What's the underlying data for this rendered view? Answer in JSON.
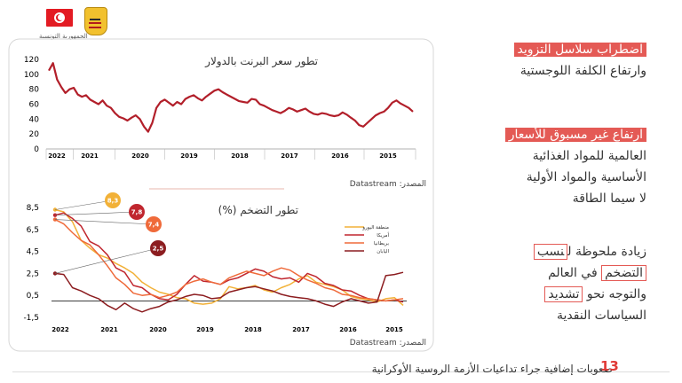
{
  "header": {
    "republic_label": "الجمهورية التونسية"
  },
  "colors": {
    "accent": "#e45a55",
    "brent_line": "#b21f2a",
    "page_number": "#e03a36"
  },
  "icons": {
    "flag": "tunisia-flag-icon",
    "emblem": "tunisia-coat-of-arms-icon"
  },
  "brent_chart": {
    "title": "تطور سعر البرنت بالدولار",
    "source": "المصدر: Datastream"
  },
  "inflation_chart": {
    "title": "تطور التضخم (%)",
    "source": "المصدر: Datastream"
  },
  "chart_data": [
    {
      "type": "line",
      "title": "تطور سعر البرنت بالدولار",
      "x_ticks": [
        "2022",
        "2021",
        "2020",
        "2019",
        "2018",
        "2017",
        "2016",
        "2015"
      ],
      "y_ticks": [
        "120",
        "100",
        "80",
        "60",
        "40",
        "20",
        "0"
      ],
      "ylim": [
        0,
        120
      ],
      "x_direction": "right-to-left",
      "series": [
        {
          "values": [
            105,
            115,
            93,
            83,
            75,
            80,
            82,
            73,
            70,
            72,
            66,
            63,
            60,
            65,
            58,
            55,
            48,
            43,
            41,
            38,
            42,
            45,
            40,
            30,
            23,
            35,
            55,
            63,
            66,
            62,
            58,
            63,
            60,
            67,
            70,
            72,
            68,
            65,
            70,
            74,
            78,
            80,
            76,
            73,
            70,
            67,
            64,
            63,
            62,
            67,
            66,
            60,
            58,
            55,
            52,
            50,
            48,
            51,
            55,
            53,
            50,
            52,
            54,
            50,
            47,
            46,
            48,
            47,
            45,
            44,
            45,
            49,
            46,
            42,
            38,
            32,
            30,
            35,
            40,
            45,
            48,
            50,
            55,
            62,
            65,
            61,
            58,
            55,
            50
          ]
        }
      ]
    },
    {
      "type": "line",
      "title": "تطور التضخم (%)",
      "x_ticks": [
        "2022",
        "2021",
        "2020",
        "2019",
        "2018",
        "2017",
        "2016",
        "2015"
      ],
      "y_ticks": [
        "8,5",
        "6,5",
        "4,5",
        "2,5",
        "0,5",
        "-1,5"
      ],
      "ylim": [
        -1.5,
        8.5
      ],
      "x_direction": "right-to-left",
      "callouts": [
        {
          "label": "8,3",
          "color": "#f2b138"
        },
        {
          "label": "7,8",
          "color": "#c0262e"
        },
        {
          "label": "7,4",
          "color": "#ef6a3a"
        },
        {
          "label": "2,5",
          "color": "#8c1d20"
        }
      ],
      "series": [
        {
          "name": "منطقة اليورو",
          "color": "#f2b138",
          "values": [
            8.3,
            8.1,
            7.2,
            5.5,
            4.8,
            4.2,
            3.9,
            3.4,
            3.0,
            2.5,
            1.7,
            1.2,
            0.8,
            0.6,
            0.3,
            0.2,
            -0.2,
            -0.3,
            -0.2,
            0.2,
            1.3,
            1.1,
            1.2,
            1.4,
            1.0,
            0.8,
            1.2,
            1.5,
            2.0,
            2.3,
            1.7,
            1.5,
            1.3,
            1.0,
            0.4,
            0.2,
            0.1,
            -0.1,
            0.2,
            0.3,
            -0.4
          ]
        },
        {
          "name": "أمريكا",
          "color": "#c0262e",
          "values": [
            7.8,
            8.0,
            7.5,
            6.8,
            5.4,
            5.0,
            4.2,
            3.0,
            2.6,
            1.4,
            1.2,
            0.6,
            0.2,
            0.1,
            0.6,
            1.5,
            2.3,
            1.8,
            1.7,
            1.5,
            1.9,
            2.1,
            2.5,
            2.9,
            2.7,
            2.2,
            2.0,
            2.1,
            1.7,
            2.5,
            2.2,
            1.6,
            1.4,
            1.0,
            0.9,
            0.5,
            0.2,
            0.1,
            0.0,
            0.1,
            -0.1
          ]
        },
        {
          "name": "بريطانيا",
          "color": "#ef6a3a",
          "values": [
            7.4,
            7.0,
            6.2,
            5.5,
            5.1,
            4.2,
            3.2,
            2.1,
            1.5,
            0.7,
            0.5,
            0.6,
            0.3,
            0.5,
            0.8,
            1.5,
            1.8,
            2.0,
            1.7,
            1.5,
            2.1,
            2.4,
            2.7,
            2.5,
            2.3,
            2.7,
            3.0,
            2.8,
            2.3,
            1.9,
            1.6,
            1.2,
            1.0,
            0.6,
            0.5,
            0.3,
            0.2,
            0.1,
            0.0,
            0.1,
            0.2
          ]
        },
        {
          "name": "اليابان",
          "color": "#8c1d20",
          "values": [
            2.5,
            2.4,
            1.2,
            0.9,
            0.5,
            0.2,
            -0.4,
            -0.8,
            -0.2,
            -0.7,
            -1.0,
            -0.7,
            -0.5,
            -0.1,
            0.1,
            0.4,
            0.6,
            0.5,
            0.2,
            0.3,
            0.8,
            1.0,
            1.2,
            1.3,
            1.1,
            0.9,
            0.6,
            0.4,
            0.3,
            0.2,
            0.0,
            -0.3,
            -0.5,
            -0.1,
            0.2,
            0.0,
            -0.2,
            -0.1,
            2.3,
            2.4,
            2.6
          ]
        }
      ]
    }
  ],
  "right_panel": {
    "block1": {
      "line1": "اضطراب سلاسل التزويد",
      "line2": "وارتفاع الكلفة اللوجستية"
    },
    "block2": {
      "line1": "ارتفاع غير مسبوق للأسعار",
      "line2": "العالمية للمواد الغذائية",
      "line3": "الأساسية والمواد الأولية",
      "line4": "لا سيما الطاقة"
    },
    "block3": {
      "line1_before": "زيادة ملحوظة ل",
      "line1_box": "نسب",
      "line2_box": "التضخم",
      "line2_after": " في العالم",
      "line3_before": "والتوجه نحو ",
      "line3_box": "تشديد",
      "line4": "السياسات النقدية"
    }
  },
  "footer": {
    "text": "صعوبات إضافية جراء تداعيات الأزمة الروسية الأوكرانية",
    "page_number": "13"
  }
}
